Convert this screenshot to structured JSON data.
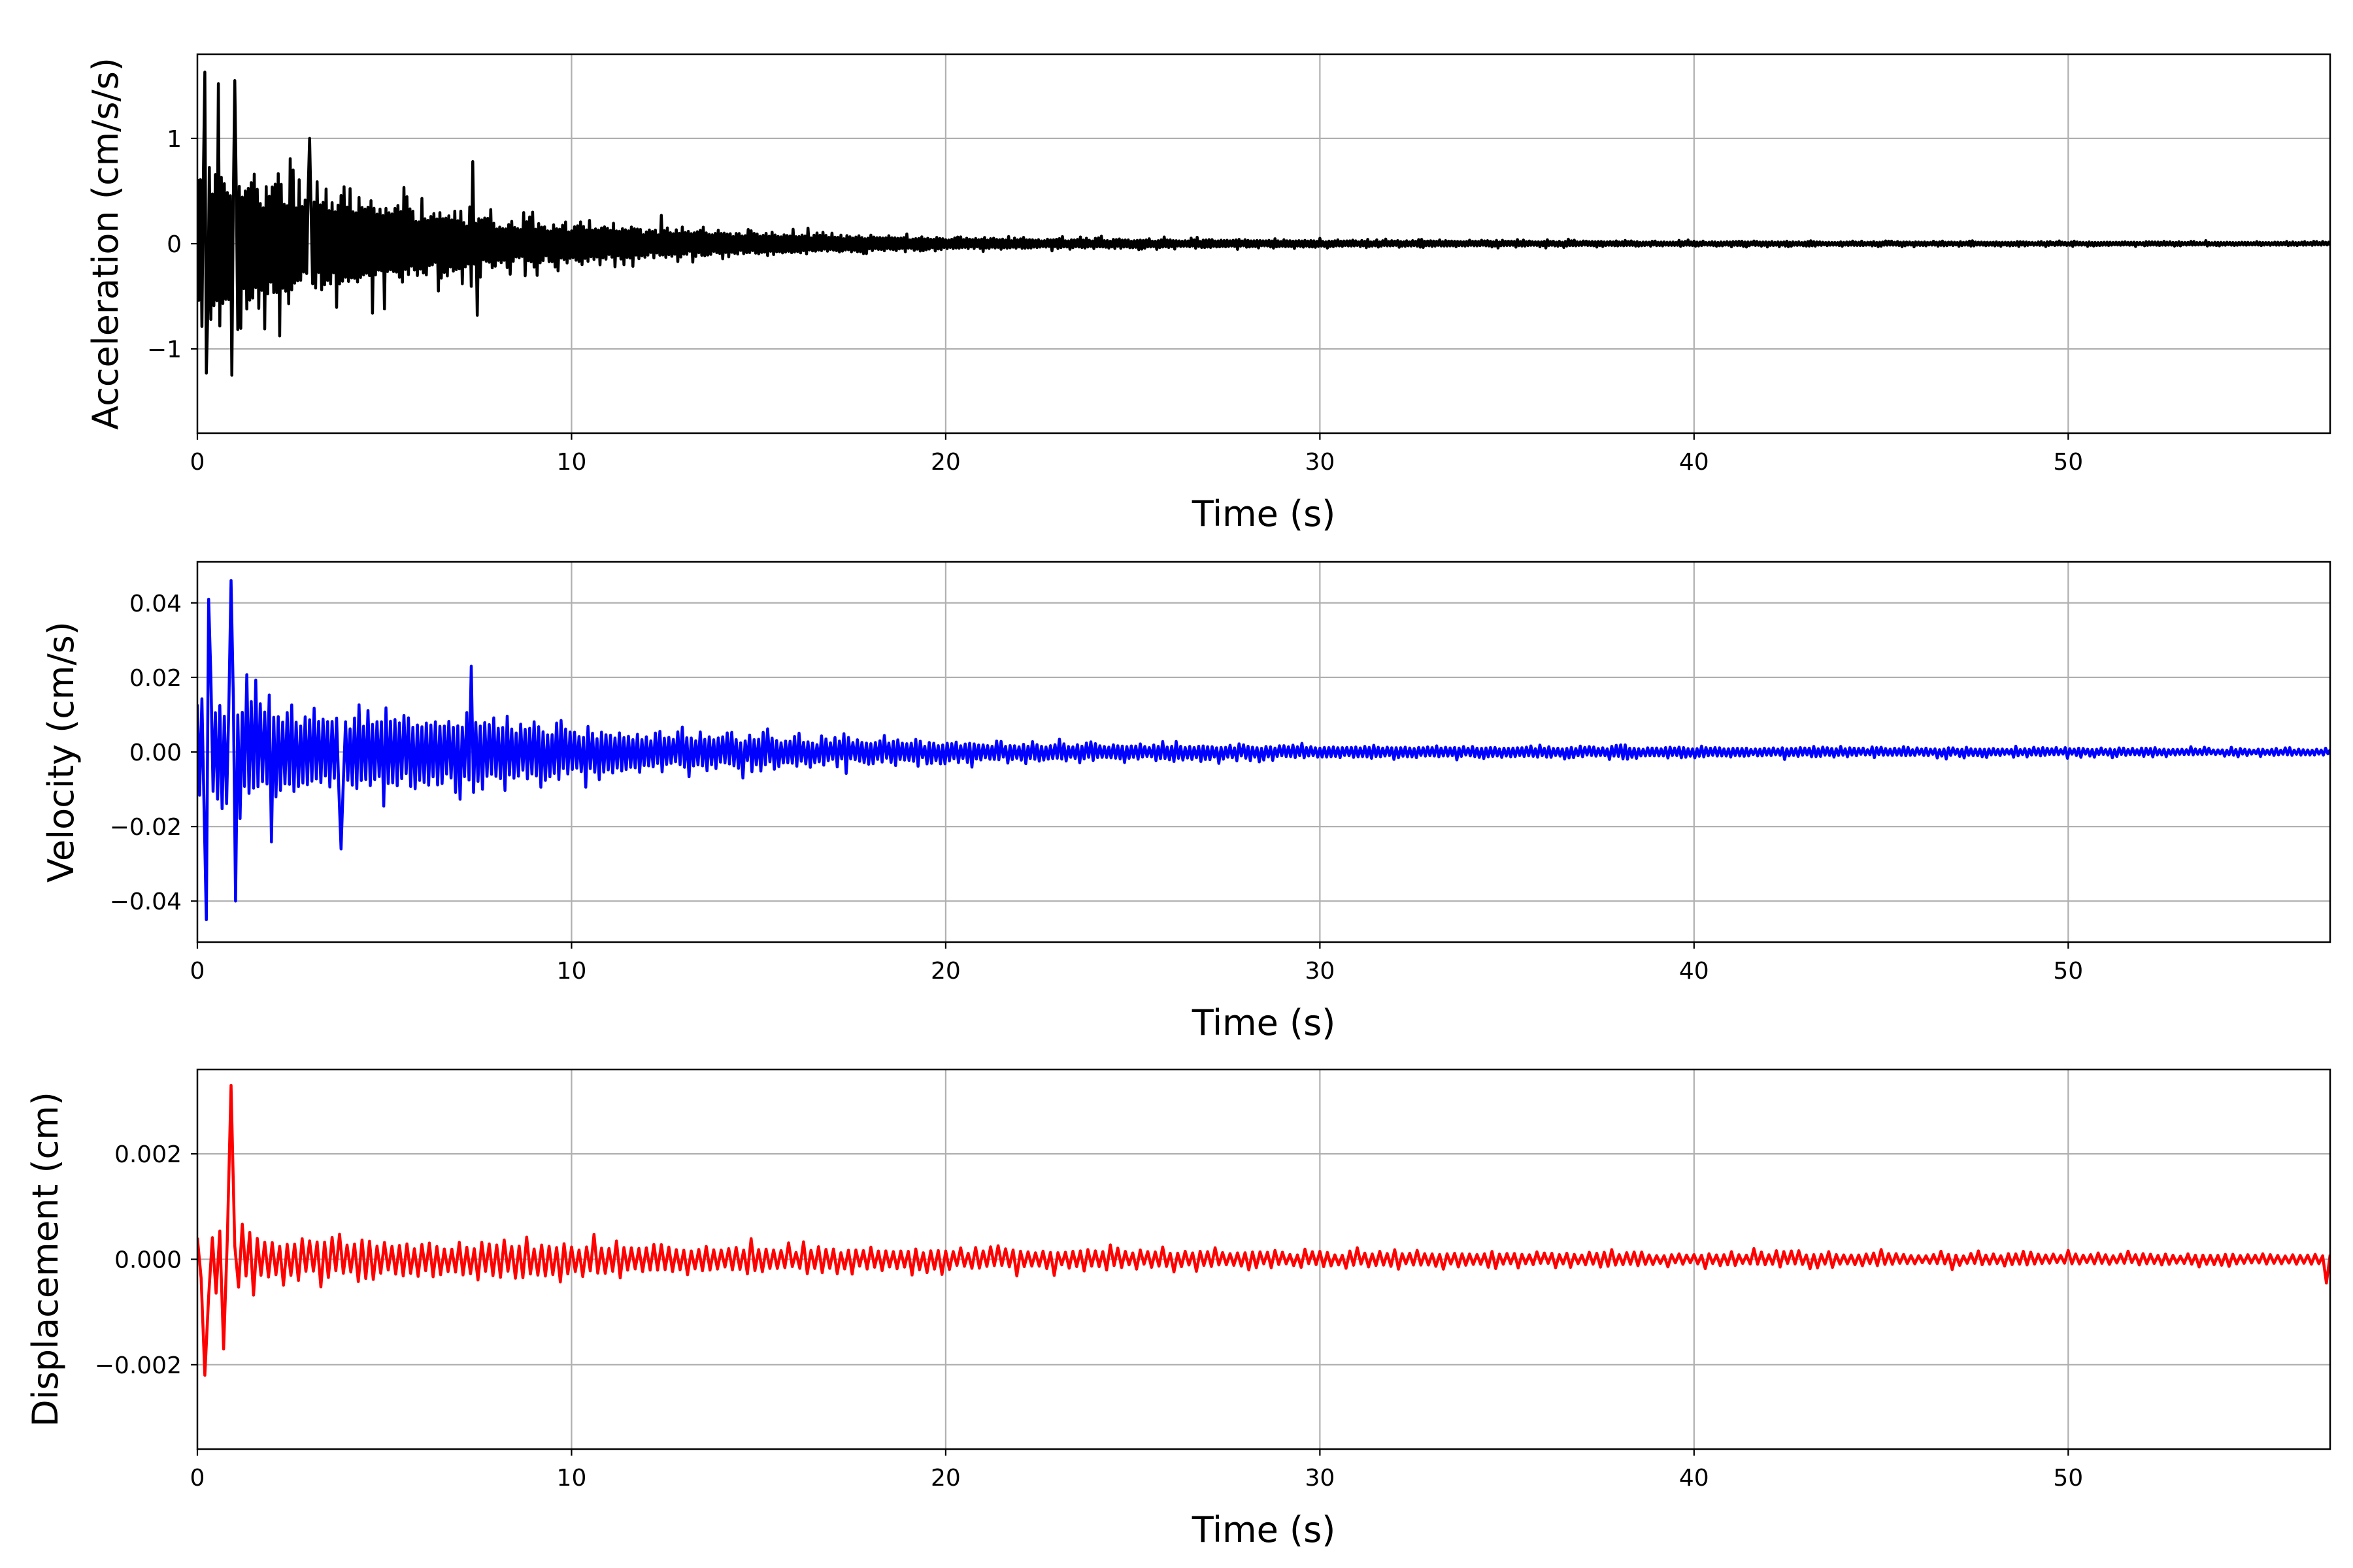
{
  "figure": {
    "background": "#ffffff",
    "grid_color": "#b0b0b0",
    "axis_color": "#000000"
  },
  "chart_data": [
    {
      "type": "line",
      "id": "acceleration",
      "xlabel": "Time (s)",
      "ylabel": "Acceleration (cm/s/s)",
      "xlim": [
        0,
        57
      ],
      "ylim": [
        -1.8,
        1.8
      ],
      "xticks": [
        0,
        10,
        20,
        30,
        40,
        50
      ],
      "xtick_labels": [
        "0",
        "10",
        "20",
        "30",
        "40",
        "50"
      ],
      "yticks": [
        -1,
        0,
        1
      ],
      "ytick_labels": [
        "−1",
        "0",
        "1"
      ],
      "grid": true,
      "color": "#000000",
      "series_model": {
        "duration": 57,
        "dt": 0.04,
        "envelope": [
          [
            0,
            1.45
          ],
          [
            3,
            0.9
          ],
          [
            8,
            0.45
          ],
          [
            13,
            0.25
          ],
          [
            20,
            0.1
          ],
          [
            30,
            0.06
          ],
          [
            40,
            0.04
          ],
          [
            57,
            0.03
          ]
        ],
        "peaks": [
          {
            "t": 0.22,
            "v": 1.63
          },
          {
            "t": 0.26,
            "v": -1.23
          },
          {
            "t": 0.55,
            "v": 1.52
          },
          {
            "t": 0.94,
            "v": -1.25
          },
          {
            "t": 1.0,
            "v": 1.55
          },
          {
            "t": 3.0,
            "v": 1.0
          },
          {
            "t": 7.35,
            "v": 0.78
          },
          {
            "t": 7.5,
            "v": -0.68
          }
        ]
      }
    },
    {
      "type": "line",
      "id": "velocity",
      "xlabel": "Time (s)",
      "ylabel": "Velocity (cm/s)",
      "xlim": [
        0,
        57
      ],
      "ylim": [
        -0.051,
        0.051
      ],
      "xticks": [
        0,
        10,
        20,
        30,
        40,
        50
      ],
      "xtick_labels": [
        "0",
        "10",
        "20",
        "30",
        "40",
        "50"
      ],
      "yticks": [
        -0.04,
        -0.02,
        0.0,
        0.02,
        0.04
      ],
      "ytick_labels": [
        "−0.04",
        "−0.02",
        "0.00",
        "0.02",
        "0.04"
      ],
      "grid": true,
      "color": "#0000ff",
      "series_model": {
        "duration": 57,
        "dt": 0.06,
        "envelope": [
          [
            0,
            0.035
          ],
          [
            3,
            0.022
          ],
          [
            8,
            0.017
          ],
          [
            12,
            0.009
          ],
          [
            20,
            0.005
          ],
          [
            30,
            0.003
          ],
          [
            57,
            0.0015
          ]
        ],
        "peaks": [
          {
            "t": 0.22,
            "v": -0.045
          },
          {
            "t": 0.3,
            "v": 0.041
          },
          {
            "t": 0.9,
            "v": 0.046
          },
          {
            "t": 1.0,
            "v": -0.04
          },
          {
            "t": 7.3,
            "v": 0.023
          },
          {
            "t": 3.85,
            "v": -0.026
          }
        ]
      }
    },
    {
      "type": "line",
      "id": "displacement",
      "xlabel": "Time (s)",
      "ylabel": "Displacement (cm)",
      "xlim": [
        0,
        57
      ],
      "ylim": [
        -0.0036,
        0.0036
      ],
      "xticks": [
        0,
        10,
        20,
        30,
        40,
        50
      ],
      "xtick_labels": [
        "0",
        "10",
        "20",
        "30",
        "40",
        "50"
      ],
      "yticks": [
        -0.002,
        0.0,
        0.002
      ],
      "ytick_labels": [
        "−0.002",
        "0.000",
        "0.002"
      ],
      "grid": true,
      "color": "#ff0000",
      "series_model": {
        "duration": 57,
        "dt": 0.1,
        "envelope": [
          [
            0,
            0.0009
          ],
          [
            5,
            0.0007
          ],
          [
            12,
            0.0005
          ],
          [
            20,
            0.0004
          ],
          [
            30,
            0.00025
          ],
          [
            57,
            0.0002
          ]
        ],
        "peaks": [
          {
            "t": 0.2,
            "v": -0.0022
          },
          {
            "t": 0.9,
            "v": 0.0033
          },
          {
            "t": 0.7,
            "v": -0.0017
          },
          {
            "t": 56.9,
            "v": -0.00045
          }
        ]
      }
    }
  ]
}
